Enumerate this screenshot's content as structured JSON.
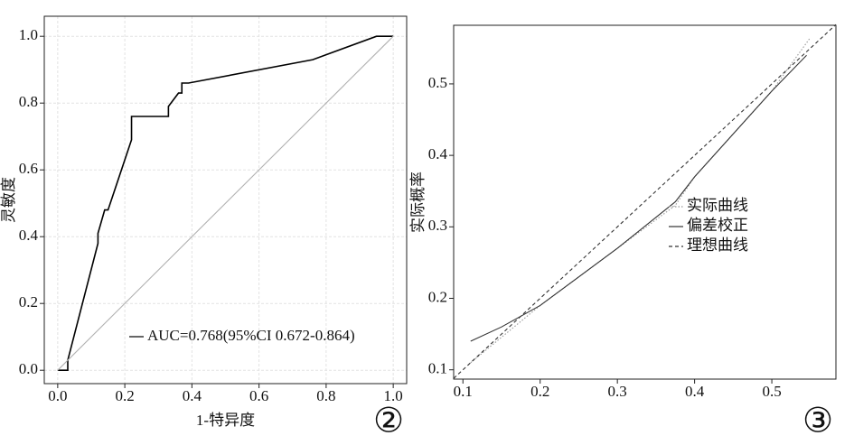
{
  "chart_data": [
    {
      "type": "line",
      "x_label": "1-特异度",
      "y_label": "灵敏度",
      "annotation": "②",
      "xlim": [
        -0.04,
        1.04
      ],
      "ylim": [
        -0.04,
        1.06
      ],
      "xticks": [
        {
          "value": 0,
          "label": "0.0"
        },
        {
          "value": 0.2,
          "label": "0.2"
        },
        {
          "value": 0.4,
          "label": "0.4"
        },
        {
          "value": 0.6,
          "label": "0.6"
        },
        {
          "value": 0.8,
          "label": "0.8"
        },
        {
          "value": 1,
          "label": "1.0"
        }
      ],
      "yticks": [
        {
          "value": 0,
          "label": "0.0"
        },
        {
          "value": 0.2,
          "label": "0.2"
        },
        {
          "value": 0.4,
          "label": "0.4"
        },
        {
          "value": 0.6,
          "label": "0.6"
        },
        {
          "value": 0.8,
          "label": "0.8"
        },
        {
          "value": 1,
          "label": "1.0"
        }
      ],
      "grid": true,
      "legend": "lower right",
      "series": [
        {
          "name": "AUC=0.768(95%CI 0.672-0.864)",
          "color": "#000000",
          "dash": "solid",
          "x": [
            0,
            0.03,
            0.03,
            0.12,
            0.12,
            0.14,
            0.15,
            0.22,
            0.22,
            0.33,
            0.33,
            0.36,
            0.37,
            0.37,
            0.39,
            0.76,
            0.95,
            1.0
          ],
          "values": [
            0,
            0,
            0.03,
            0.38,
            0.41,
            0.48,
            0.48,
            0.69,
            0.76,
            0.76,
            0.79,
            0.83,
            0.83,
            0.86,
            0.86,
            0.93,
            1.0,
            1.0
          ]
        },
        {
          "color": "#b0b0b0",
          "dash": "solid",
          "x": [
            0,
            1
          ],
          "values": [
            0,
            1
          ]
        }
      ]
    },
    {
      "type": "line",
      "y_label": "实际概率",
      "annotation": "③",
      "xlim": [
        0.088,
        0.583
      ],
      "ylim": [
        0.087,
        0.582
      ],
      "xticks": [
        0.1,
        0.2,
        0.3,
        0.4,
        0.5
      ],
      "yticks": [
        0.1,
        0.2,
        0.3,
        0.4,
        0.5
      ],
      "grid": false,
      "legend": "center right",
      "series": [
        {
          "name": "实际曲线",
          "color": "#999999",
          "dash": "dotted",
          "x": [
            0.11,
            0.2,
            0.3,
            0.375,
            0.4,
            0.5,
            0.55
          ],
          "values": [
            0.11,
            0.19,
            0.27,
            0.33,
            0.37,
            0.49,
            0.565
          ]
        },
        {
          "name": "偏差校正",
          "color": "#333333",
          "dash": "solid",
          "x": [
            0.11,
            0.15,
            0.2,
            0.3,
            0.375,
            0.4,
            0.5,
            0.545
          ],
          "values": [
            0.14,
            0.16,
            0.19,
            0.27,
            0.335,
            0.37,
            0.49,
            0.54
          ]
        },
        {
          "name": "理想曲线",
          "color": "#333333",
          "dash": "dashed",
          "x": [
            0.088,
            0.583
          ],
          "values": [
            0.088,
            0.583
          ]
        }
      ]
    }
  ]
}
